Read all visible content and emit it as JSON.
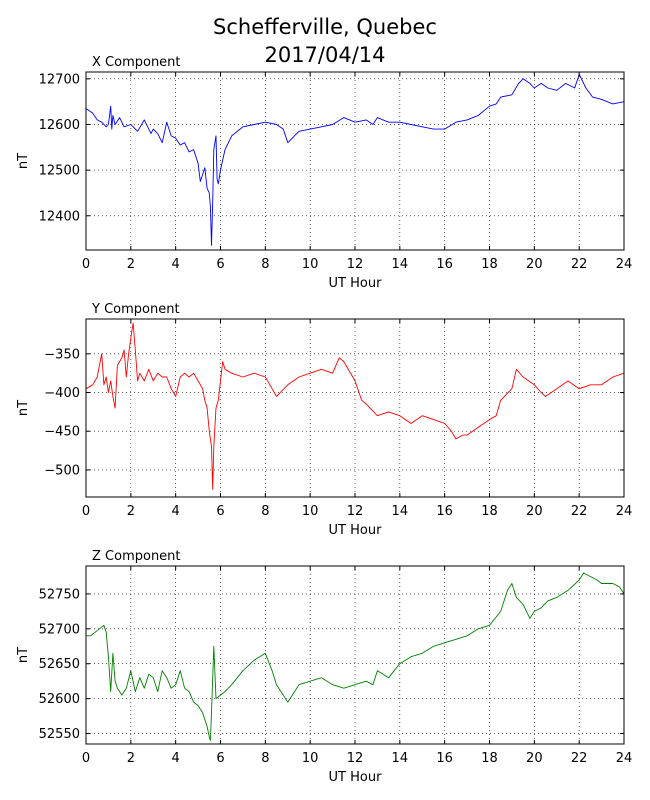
{
  "title": [
    "Schefferville, Quebec",
    "2017/04/14"
  ],
  "chart_data": [
    {
      "type": "line",
      "title": "X Component",
      "xlabel": "UT Hour",
      "ylabel": "nT",
      "xlim": [
        0,
        24
      ],
      "ylim": [
        12325,
        12715
      ],
      "xticks": [
        0,
        2,
        4,
        6,
        8,
        10,
        12,
        14,
        16,
        18,
        20,
        22,
        24
      ],
      "yticks": [
        12400,
        12500,
        12600,
        12700
      ],
      "grid": true,
      "color": "#0000ff",
      "series": [
        {
          "x": [
            0,
            0.3,
            0.5,
            0.7,
            0.9,
            1.0,
            1.1,
            1.15,
            1.2,
            1.3,
            1.5,
            1.7,
            2.0,
            2.3,
            2.6,
            2.9,
            3.0,
            3.2,
            3.4,
            3.6,
            3.8,
            4.0,
            4.2,
            4.4,
            4.6,
            4.8,
            5.0,
            5.1,
            5.3,
            5.4,
            5.5,
            5.55,
            5.6,
            5.65,
            5.7,
            5.8,
            5.85,
            5.9,
            6.0,
            6.2,
            6.5,
            7.0,
            7.5,
            8.0,
            8.5,
            8.8,
            9.0,
            9.5,
            10.0,
            10.5,
            11.0,
            11.5,
            12.0,
            12.5,
            12.8,
            13.0,
            13.5,
            14.0,
            14.5,
            15.0,
            15.5,
            16.0,
            16.5,
            17.0,
            17.5,
            18.0,
            18.3,
            18.5,
            19.0,
            19.3,
            19.5,
            19.8,
            20.0,
            20.3,
            20.6,
            21.0,
            21.4,
            21.8,
            22.0,
            22.3,
            22.6,
            23.0,
            23.5,
            24.0
          ],
          "values": [
            12635,
            12625,
            12610,
            12605,
            12595,
            12600,
            12640,
            12590,
            12620,
            12600,
            12615,
            12595,
            12600,
            12585,
            12610,
            12580,
            12590,
            12580,
            12560,
            12605,
            12575,
            12570,
            12555,
            12560,
            12540,
            12545,
            12515,
            12475,
            12505,
            12460,
            12450,
            12420,
            12335,
            12430,
            12545,
            12575,
            12480,
            12470,
            12500,
            12545,
            12575,
            12595,
            12600,
            12605,
            12600,
            12590,
            12560,
            12585,
            12590,
            12595,
            12600,
            12615,
            12605,
            12610,
            12600,
            12615,
            12605,
            12605,
            12600,
            12595,
            12590,
            12590,
            12605,
            12610,
            12620,
            12640,
            12645,
            12660,
            12665,
            12690,
            12700,
            12690,
            12680,
            12690,
            12680,
            12675,
            12690,
            12680,
            12710,
            12680,
            12660,
            12655,
            12645,
            12650
          ]
        }
      ]
    },
    {
      "type": "line",
      "title": "Y Component",
      "xlabel": "UT Hour",
      "ylabel": "nT",
      "xlim": [
        0,
        24
      ],
      "ylim": [
        -535,
        -305
      ],
      "xticks": [
        0,
        2,
        4,
        6,
        8,
        10,
        12,
        14,
        16,
        18,
        20,
        22,
        24
      ],
      "yticks": [
        -500,
        -450,
        -400,
        -350
      ],
      "grid": true,
      "color": "#ff0000",
      "series": [
        {
          "x": [
            0,
            0.3,
            0.5,
            0.7,
            0.8,
            0.9,
            1.0,
            1.1,
            1.2,
            1.3,
            1.4,
            1.5,
            1.6,
            1.7,
            1.8,
            1.9,
            2.0,
            2.1,
            2.2,
            2.3,
            2.4,
            2.6,
            2.8,
            3.0,
            3.2,
            3.4,
            3.6,
            3.8,
            4.0,
            4.2,
            4.4,
            4.6,
            4.8,
            5.0,
            5.2,
            5.3,
            5.4,
            5.5,
            5.6,
            5.65,
            5.7,
            5.8,
            5.9,
            6.0,
            6.1,
            6.2,
            6.5,
            7.0,
            7.5,
            8.0,
            8.3,
            8.5,
            9.0,
            9.5,
            10.0,
            10.5,
            11.0,
            11.3,
            11.5,
            12.0,
            12.3,
            12.5,
            13.0,
            13.5,
            14.0,
            14.5,
            15.0,
            15.5,
            16.0,
            16.3,
            16.5,
            16.8,
            17.0,
            17.5,
            18.0,
            18.3,
            18.5,
            19.0,
            19.2,
            19.5,
            20.0,
            20.3,
            20.5,
            21.0,
            21.5,
            22.0,
            22.5,
            23.0,
            23.5,
            24.0
          ],
          "values": [
            -395,
            -390,
            -380,
            -350,
            -390,
            -380,
            -400,
            -385,
            -405,
            -420,
            -365,
            -360,
            -355,
            -345,
            -380,
            -350,
            -330,
            -310,
            -345,
            -385,
            -375,
            -385,
            -370,
            -385,
            -375,
            -380,
            -380,
            -395,
            -405,
            -380,
            -375,
            -380,
            -375,
            -385,
            -395,
            -410,
            -420,
            -450,
            -470,
            -525,
            -470,
            -420,
            -410,
            -385,
            -360,
            -370,
            -375,
            -380,
            -375,
            -380,
            -395,
            -405,
            -390,
            -380,
            -375,
            -370,
            -375,
            -355,
            -360,
            -385,
            -410,
            -415,
            -430,
            -425,
            -430,
            -440,
            -430,
            -435,
            -440,
            -450,
            -460,
            -455,
            -455,
            -445,
            -435,
            -430,
            -410,
            -395,
            -370,
            -380,
            -390,
            -400,
            -405,
            -395,
            -385,
            -395,
            -390,
            -390,
            -380,
            -375
          ]
        }
      ]
    },
    {
      "type": "line",
      "title": "Z Component",
      "xlabel": "UT Hour",
      "ylabel": "nT",
      "xlim": [
        0,
        24
      ],
      "ylim": [
        52535,
        52790
      ],
      "xticks": [
        0,
        2,
        4,
        6,
        8,
        10,
        12,
        14,
        16,
        18,
        20,
        22,
        24
      ],
      "yticks": [
        52550,
        52600,
        52650,
        52700,
        52750
      ],
      "grid": true,
      "color": "#008000",
      "series": [
        {
          "x": [
            0,
            0.2,
            0.4,
            0.6,
            0.8,
            0.9,
            1.0,
            1.1,
            1.2,
            1.3,
            1.4,
            1.6,
            1.8,
            2.0,
            2.2,
            2.4,
            2.6,
            2.8,
            3.0,
            3.2,
            3.4,
            3.6,
            3.8,
            4.0,
            4.2,
            4.4,
            4.6,
            4.8,
            5.0,
            5.2,
            5.4,
            5.5,
            5.55,
            5.6,
            5.7,
            5.8,
            6.0,
            6.2,
            6.5,
            7.0,
            7.5,
            8.0,
            8.3,
            8.5,
            9.0,
            9.5,
            10.0,
            10.5,
            11.0,
            11.5,
            12.0,
            12.5,
            12.8,
            13.0,
            13.5,
            14.0,
            14.5,
            15.0,
            15.5,
            16.0,
            16.5,
            17.0,
            17.5,
            18.0,
            18.5,
            18.8,
            19.0,
            19.2,
            19.5,
            19.8,
            20.0,
            20.3,
            20.6,
            21.0,
            21.5,
            22.0,
            22.2,
            22.5,
            22.8,
            23.0,
            23.5,
            23.8,
            24.0
          ],
          "values": [
            52690,
            52690,
            52695,
            52700,
            52705,
            52695,
            52660,
            52610,
            52665,
            52625,
            52615,
            52605,
            52615,
            52640,
            52610,
            52630,
            52615,
            52635,
            52630,
            52610,
            52640,
            52630,
            52615,
            52620,
            52640,
            52615,
            52610,
            52595,
            52590,
            52580,
            52560,
            52545,
            52540,
            52580,
            52675,
            52600,
            52605,
            52610,
            52620,
            52640,
            52655,
            52665,
            52640,
            52620,
            52595,
            52620,
            52625,
            52630,
            52620,
            52615,
            52620,
            52625,
            52620,
            52640,
            52630,
            52650,
            52660,
            52665,
            52675,
            52680,
            52685,
            52690,
            52700,
            52705,
            52725,
            52755,
            52765,
            52745,
            52735,
            52715,
            52725,
            52730,
            52740,
            52745,
            52755,
            52770,
            52780,
            52775,
            52770,
            52765,
            52765,
            52760,
            52750
          ]
        }
      ]
    }
  ]
}
